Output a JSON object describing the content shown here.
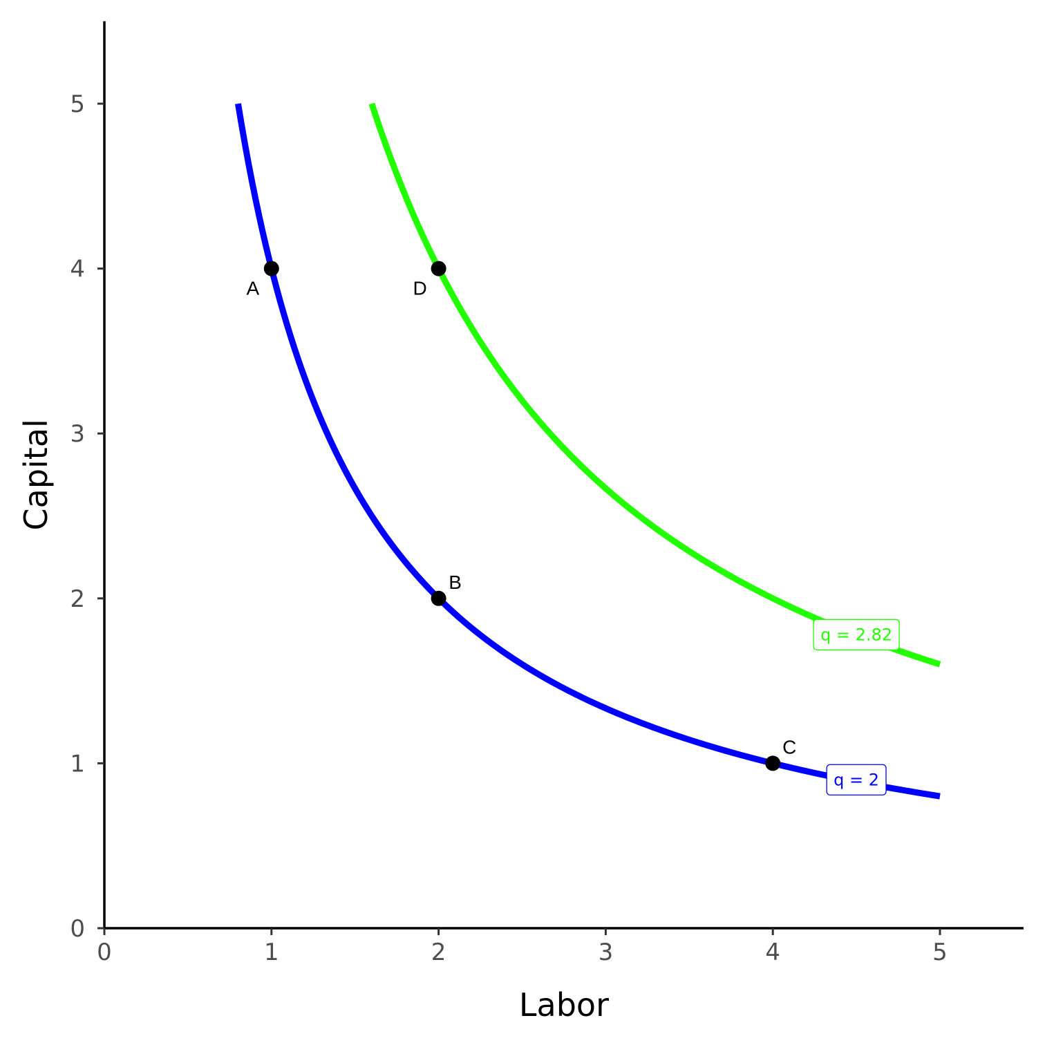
{
  "chart_data": {
    "type": "line",
    "xlabel": "Labor",
    "ylabel": "Capital",
    "xlim": [
      0,
      5.5
    ],
    "ylim": [
      0,
      5.5
    ],
    "xticks": [
      0,
      1,
      2,
      3,
      4,
      5
    ],
    "yticks": [
      0,
      1,
      2,
      3,
      4,
      5
    ],
    "x_tick_labels": [
      "0",
      "1",
      "2",
      "3",
      "4",
      "5"
    ],
    "y_tick_labels": [
      "0",
      "1",
      "2",
      "3",
      "4",
      "5"
    ],
    "grid": false,
    "legend": "none",
    "series": [
      {
        "name": "q = 2",
        "formula": "K = 4 / L",
        "x_range": [
          0.8,
          5
        ],
        "color": "#0000FF",
        "label": "q = 2",
        "label_at": [
          4.5,
          0.9
        ]
      },
      {
        "name": "q = 2.82",
        "formula": "K = 8 / L",
        "x_range": [
          1.6,
          5
        ],
        "color": "#22FF00",
        "label": "q = 2.82",
        "label_at": [
          4.5,
          1.78
        ]
      }
    ],
    "points": [
      {
        "label": "A",
        "x": 1,
        "y": 4,
        "label_pos": "bottom-left"
      },
      {
        "label": "B",
        "x": 2,
        "y": 2,
        "label_pos": "top-right"
      },
      {
        "label": "C",
        "x": 4,
        "y": 1,
        "label_pos": "top-right"
      },
      {
        "label": "D",
        "x": 2,
        "y": 4,
        "label_pos": "bottom-left"
      }
    ]
  }
}
